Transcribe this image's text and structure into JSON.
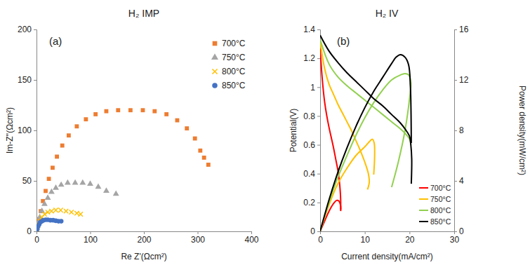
{
  "chart_data": [
    {
      "type": "scatter",
      "title": "H₂ IMP",
      "annotations": [
        "(a)"
      ],
      "x_label": "Re Z'(Ωcm²)",
      "y_label": "Im-Z''(Ωcm²)",
      "xlim": [
        0,
        400
      ],
      "xticks": [
        0,
        100,
        200,
        300,
        400
      ],
      "ylim": [
        0,
        200
      ],
      "yticks": [
        0,
        50,
        100,
        150,
        200
      ],
      "legend": "upper-right",
      "series": [
        {
          "name": "700°C",
          "color": "#ED7D31",
          "marker": "square",
          "x": [
            2,
            5,
            8,
            12,
            17,
            23,
            30,
            38,
            48,
            60,
            75,
            92,
            110,
            130,
            152,
            175,
            198,
            220,
            242,
            262,
            280,
            295,
            305,
            312,
            320
          ],
          "values": [
            5,
            12,
            20,
            30,
            40,
            52,
            63,
            74,
            85,
            95,
            104,
            111,
            116,
            119,
            120,
            120,
            120,
            119,
            116,
            110,
            102,
            92,
            80,
            73,
            66
          ]
        },
        {
          "name": "750°C",
          "color": "#A5A5A5",
          "marker": "triangle",
          "x": [
            1,
            3,
            6,
            10,
            15,
            21,
            28,
            36,
            46,
            58,
            72,
            86,
            100,
            115,
            130,
            148
          ],
          "values": [
            3,
            8,
            14,
            20,
            27,
            33,
            39,
            43,
            46,
            48,
            48,
            48,
            47,
            44,
            40,
            37
          ]
        },
        {
          "name": "800°C",
          "color": "#FFC000",
          "marker": "x",
          "x": [
            1,
            3,
            6,
            10,
            15,
            21,
            28,
            36,
            45,
            55,
            65,
            75,
            82
          ],
          "values": [
            2,
            6,
            10,
            14,
            17,
            19,
            20,
            21,
            21,
            20,
            19,
            18,
            17
          ]
        },
        {
          "name": "850°C",
          "color": "#4472C4",
          "marker": "circle",
          "x": [
            0.5,
            1.5,
            3,
            5,
            7,
            10,
            13,
            17,
            21,
            26,
            31,
            36,
            41,
            46
          ],
          "values": [
            1,
            3,
            5,
            7,
            9,
            10,
            11,
            11.5,
            11.5,
            11,
            11,
            10.5,
            10,
            10
          ]
        }
      ]
    },
    {
      "type": "line",
      "title": "H₂ IV",
      "annotations": [
        "(b)"
      ],
      "x_label": "Current density(mA/cm²)",
      "y_label": "Potential(V)",
      "y2_label": "Power density(mW/cm²)",
      "xlim": [
        0,
        30
      ],
      "xticks": [
        0,
        10,
        20,
        30
      ],
      "ylim": [
        0,
        1.4
      ],
      "yticks": [
        0,
        0.2,
        0.4,
        0.6,
        0.8,
        1,
        1.2,
        1.4
      ],
      "y2lim": [
        0,
        16
      ],
      "y2ticks": [
        0,
        4,
        8,
        12,
        16
      ],
      "legend": "lower-right",
      "series": [
        {
          "name": "700°C",
          "color": "#FF0000",
          "line_style": "solid",
          "x": [
            0,
            0.5,
            1,
            1.5,
            2,
            2.5,
            3,
            3.5,
            4,
            4.3,
            4.5,
            4.6,
            4.6
          ],
          "values": [
            1.27,
            1.05,
            0.9,
            0.8,
            0.72,
            0.65,
            0.58,
            0.5,
            0.42,
            0.35,
            0.28,
            0.22,
            0.15
          ]
        },
        {
          "color": "#FF0000",
          "line_style": "solid",
          "axis": "y2",
          "x": [
            0,
            1,
            2,
            3,
            3.7,
            4.2,
            4.6,
            4.6
          ],
          "values": [
            0,
            0.8,
            1.6,
            2.2,
            2.45,
            2.4,
            2,
            1.6
          ]
        },
        {
          "name": "750°C",
          "color": "#FFC000",
          "line_style": "solid",
          "x": [
            0,
            1,
            2,
            3,
            4,
            5,
            6,
            7,
            8,
            9,
            10,
            10.8,
            11,
            10.6
          ],
          "values": [
            1.32,
            1.13,
            1.02,
            0.95,
            0.88,
            0.82,
            0.76,
            0.7,
            0.63,
            0.56,
            0.48,
            0.4,
            0.34,
            0.29
          ]
        },
        {
          "color": "#FFC000",
          "line_style": "solid",
          "axis": "y2",
          "x": [
            0,
            2,
            4,
            6,
            8,
            10,
            11,
            11.7,
            12.1,
            12.2,
            12
          ],
          "values": [
            0,
            2.1,
            3.8,
            5,
            6,
            6.7,
            7.1,
            7.3,
            7,
            6,
            4.5
          ]
        },
        {
          "name": "800°C",
          "color": "#92D050",
          "line_style": "solid",
          "x": [
            0,
            2,
            4,
            6,
            8,
            10,
            12,
            14,
            16,
            18,
            19,
            20,
            20.3
          ],
          "values": [
            1.33,
            1.16,
            1.07,
            1.01,
            0.96,
            0.91,
            0.86,
            0.81,
            0.76,
            0.71,
            0.68,
            0.64,
            0.6
          ]
        },
        {
          "color": "#92D050",
          "line_style": "solid",
          "axis": "y2",
          "x": [
            0,
            2,
            4,
            6,
            8,
            10,
            12,
            14,
            16,
            18,
            19,
            19.8,
            20.3,
            20,
            19,
            17.5,
            16
          ],
          "values": [
            0,
            2.3,
            4.3,
            6,
            7.6,
            9,
            10.2,
            11.2,
            12,
            12.4,
            12.5,
            12.4,
            11.8,
            10.5,
            8,
            5.5,
            3.5
          ]
        },
        {
          "name": "850°C",
          "color": "#000000",
          "line_style": "solid",
          "x": [
            0,
            2,
            4,
            6,
            8,
            10,
            12,
            14,
            16,
            18,
            19,
            20,
            20.3,
            20.5,
            20.4
          ],
          "values": [
            1.36,
            1.25,
            1.17,
            1.1,
            1.04,
            0.98,
            0.92,
            0.87,
            0.81,
            0.75,
            0.71,
            0.66,
            0.6,
            0.5,
            0.33
          ]
        },
        {
          "color": "#000000",
          "line_style": "solid",
          "axis": "y2",
          "x": [
            0,
            2,
            4,
            6,
            8,
            10,
            12,
            14,
            16,
            17,
            18,
            19,
            19.8,
            20.2,
            20.4
          ],
          "values": [
            0,
            2.5,
            4.7,
            6.6,
            8.3,
            9.8,
            11.1,
            12.2,
            13.3,
            13.8,
            14,
            13.8,
            13.2,
            11.5,
            7
          ]
        }
      ]
    }
  ]
}
